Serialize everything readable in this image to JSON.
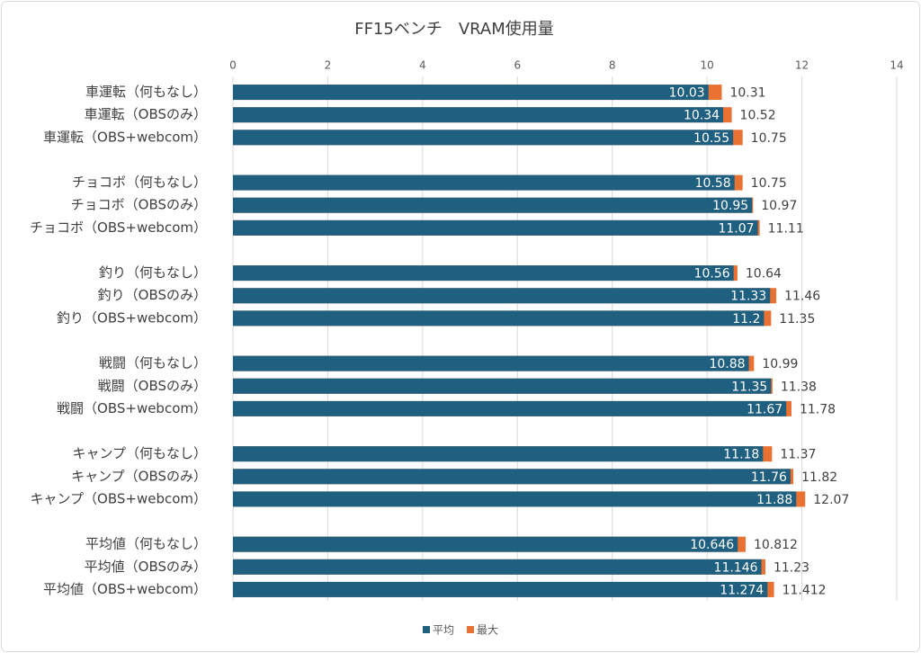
{
  "chart_data": {
    "type": "bar",
    "orientation": "horizontal",
    "title": "FF15ベンチ　VRAM使用量",
    "categories": [
      "車運転（何もなし）",
      "車運転（OBSのみ）",
      "車運転（OBS+webcom）",
      null,
      "チョコボ（何もなし）",
      "チョコボ（OBSのみ）",
      "チョコボ（OBS+webcom）",
      null,
      "釣り（何もなし）",
      "釣り（OBSのみ）",
      "釣り（OBS+webcom）",
      null,
      "戦闘（何もなし）",
      "戦闘（OBSのみ）",
      "戦闘（OBS+webcom）",
      null,
      "キャンプ（何もなし）",
      "キャンプ（OBSのみ）",
      "キャンプ（OBS+webcom）",
      null,
      "平均値（何もなし）",
      "平均値（OBSのみ）",
      "平均値（OBS+webcom）"
    ],
    "series": [
      {
        "name": "平均",
        "color": "#1f5f80",
        "values": [
          10.03,
          10.34,
          10.55,
          null,
          10.58,
          10.95,
          11.07,
          null,
          10.56,
          11.33,
          11.2,
          null,
          10.88,
          11.35,
          11.67,
          null,
          11.18,
          11.76,
          11.88,
          null,
          10.646,
          11.146,
          11.274
        ]
      },
      {
        "name": "最大",
        "color": "#e97132",
        "values": [
          10.31,
          10.52,
          10.75,
          null,
          10.75,
          10.97,
          11.11,
          null,
          10.64,
          11.46,
          11.35,
          null,
          10.99,
          11.38,
          11.78,
          null,
          11.37,
          11.82,
          12.07,
          null,
          10.812,
          11.23,
          11.412
        ]
      }
    ],
    "xlim": [
      0,
      14
    ],
    "xticks": [
      0,
      2,
      4,
      6,
      8,
      10,
      12,
      14
    ],
    "grid": true,
    "legend": "bottom"
  }
}
